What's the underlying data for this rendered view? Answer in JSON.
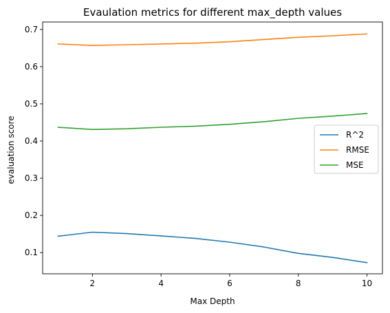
{
  "chart_data": {
    "type": "line",
    "title": "Evaulation metrics for different max_depth values",
    "xlabel": "Max Depth",
    "ylabel": "evaluation score",
    "xlim": [
      0.55,
      10.45
    ],
    "ylim": [
      0.043,
      0.72
    ],
    "xticks": [
      2,
      4,
      6,
      8,
      10
    ],
    "yticks": [
      0.1,
      0.2,
      0.3,
      0.4,
      0.5,
      0.6,
      0.7
    ],
    "grid": false,
    "legend_position": "center-right",
    "x": [
      1,
      2,
      3,
      4,
      5,
      6,
      7,
      8,
      9,
      10
    ],
    "series": [
      {
        "name": "R^2",
        "color": "#1f77b4",
        "values": [
          0.144,
          0.155,
          0.151,
          0.145,
          0.138,
          0.128,
          0.115,
          0.098,
          0.087,
          0.073
        ]
      },
      {
        "name": "RMSE",
        "color": "#ff7f0e",
        "values": [
          0.661,
          0.657,
          0.659,
          0.661,
          0.663,
          0.667,
          0.673,
          0.679,
          0.683,
          0.688
        ]
      },
      {
        "name": "MSE",
        "color": "#2ca02c",
        "values": [
          0.437,
          0.431,
          0.433,
          0.437,
          0.44,
          0.445,
          0.452,
          0.461,
          0.467,
          0.474
        ]
      }
    ]
  }
}
